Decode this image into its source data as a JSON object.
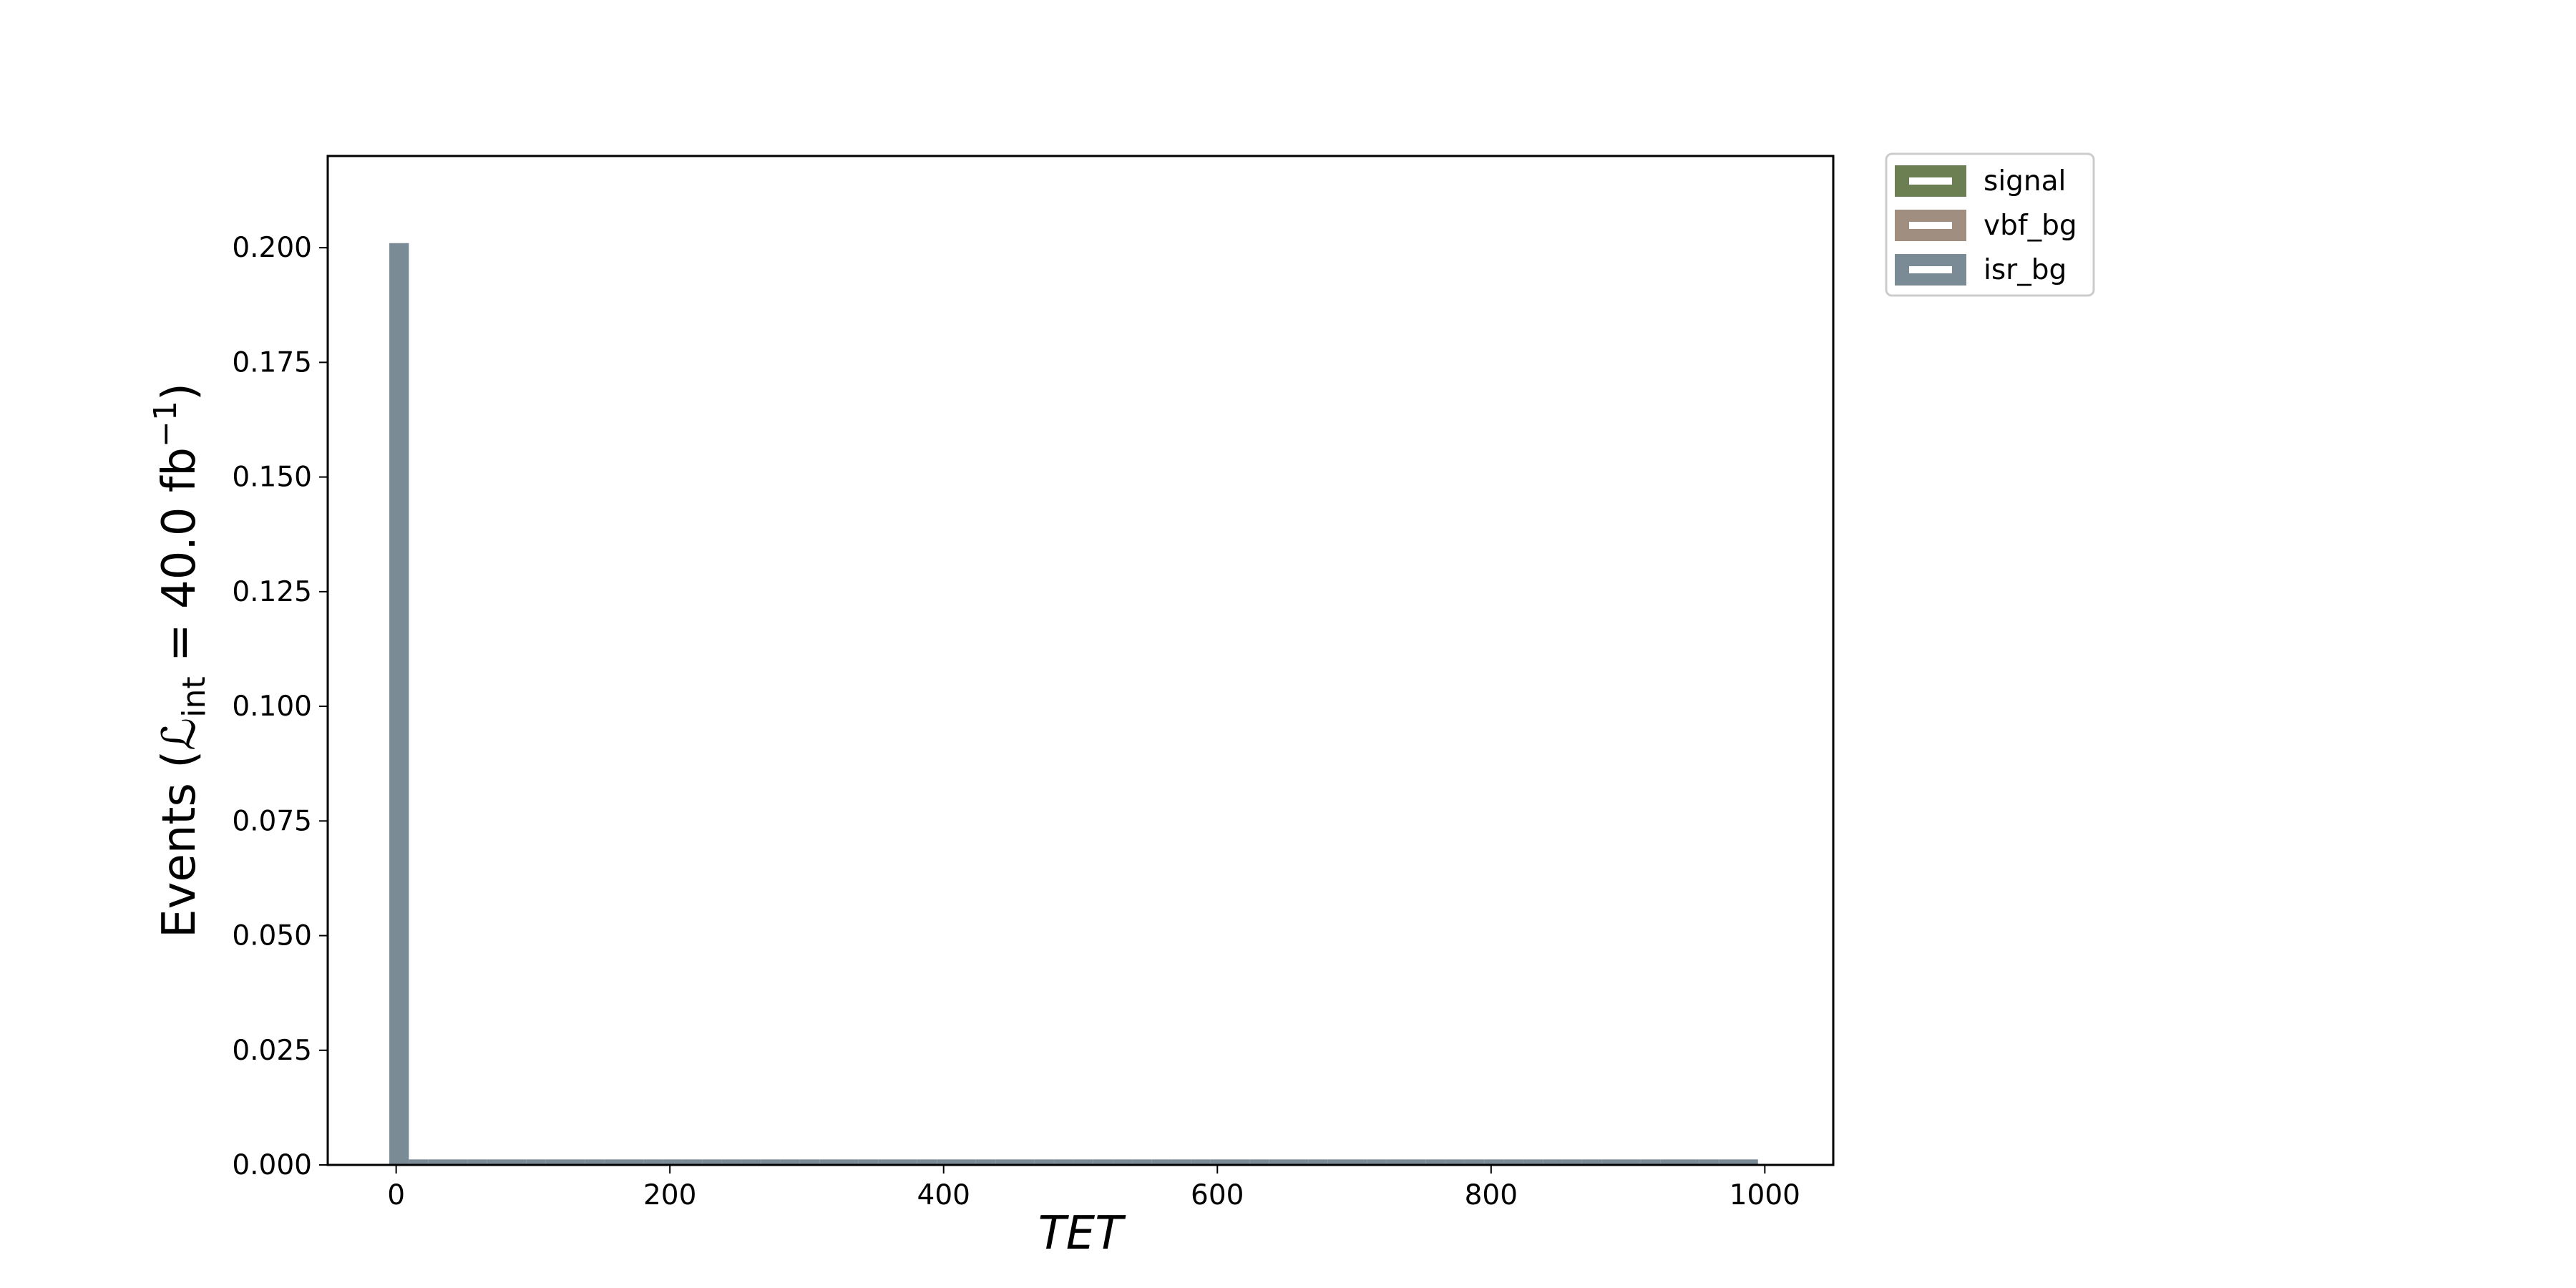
{
  "chart_data": {
    "type": "bar",
    "title": "",
    "xlabel": "TET",
    "ylabel": {
      "prefix": "Events (",
      "script_l": "ℒ",
      "subscript": "int",
      "middle": " = 40.0 fb",
      "superscript": "−1",
      "suffix": ")"
    },
    "xlim": [
      -50,
      1050
    ],
    "ylim": [
      0,
      0.22
    ],
    "x_ticks": [
      0,
      200,
      400,
      600,
      800,
      1000
    ],
    "x_tick_labels": [
      "0",
      "200",
      "400",
      "600",
      "800",
      "1000"
    ],
    "y_ticks": [
      0,
      0.025,
      0.05,
      0.075,
      0.1,
      0.125,
      0.15,
      0.175,
      0.2
    ],
    "y_tick_labels": [
      "0.000",
      "0.025",
      "0.050",
      "0.075",
      "0.100",
      "0.125",
      "0.150",
      "0.175",
      "0.200"
    ],
    "bin_width": 14.2857,
    "bin_start": -5,
    "n_bins": 70,
    "legend_position": "outside-upper-right",
    "series": [
      {
        "name": "signal",
        "color": "#6b7f52",
        "values": []
      },
      {
        "name": "vbf_bg",
        "color": "#a08f80",
        "values": []
      },
      {
        "name": "isr_bg",
        "color": "#7a8b96",
        "values": [
          0.201,
          0.0012,
          0.0012,
          0.0012,
          0.0012,
          0.0012,
          0.0012,
          0.0012,
          0.0012,
          0.0012,
          0.0012,
          0.0012,
          0.0012,
          0.0012,
          0.0012,
          0.0012,
          0.0012,
          0.0012,
          0.0012,
          0.0012,
          0.0012,
          0.0012,
          0.0012,
          0.0012,
          0.0012,
          0.0012,
          0.0012,
          0.0012,
          0.0012,
          0.0012,
          0.0012,
          0.0012,
          0.0012,
          0.0012,
          0.0012,
          0.0012,
          0.0012,
          0.0012,
          0.0012,
          0.0012,
          0.0012,
          0.0012,
          0.0012,
          0.0012,
          0.0012,
          0.0012,
          0.0012,
          0.0012,
          0.0012,
          0.0012,
          0.0012,
          0.0012,
          0.0012,
          0.0012,
          0.0012,
          0.0012,
          0.0012,
          0.0012,
          0.0012,
          0.0012,
          0.0012,
          0.0012,
          0.0012,
          0.0012,
          0.0012,
          0.0012,
          0.0012,
          0.0012,
          0.0012,
          0.0012
        ]
      }
    ]
  }
}
